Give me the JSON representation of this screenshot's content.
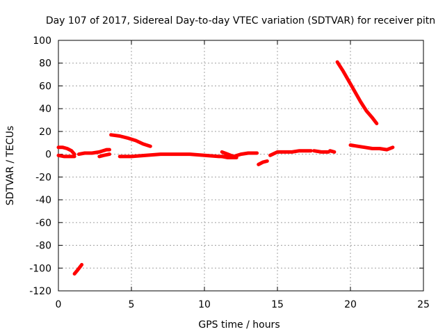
{
  "chart_data": {
    "type": "line",
    "title": "Day 107 of 2017, Sidereal Day-to-day VTEC variation (SDTVAR) for receiver pitn",
    "xlabel": "GPS time / hours",
    "ylabel": "SDTVAR / TECUs",
    "xlim": [
      0,
      25
    ],
    "ylim": [
      -120,
      100
    ],
    "xticks": [
      0,
      5,
      10,
      15,
      20,
      25
    ],
    "yticks": [
      -120,
      -100,
      -80,
      -60,
      -40,
      -20,
      0,
      20,
      40,
      60,
      80,
      100
    ],
    "grid": true,
    "legend": "none",
    "series_color": "#ff0000",
    "segments": [
      {
        "x": [
          0.0,
          0.3,
          0.6,
          0.9,
          1.1
        ],
        "y": [
          6,
          6,
          5,
          3,
          0
        ]
      },
      {
        "x": [
          0.0,
          0.4,
          0.8,
          1.1
        ],
        "y": [
          -1,
          -2,
          -2,
          -2
        ]
      },
      {
        "x": [
          1.1,
          1.3,
          1.6
        ],
        "y": [
          -105,
          -102,
          -97
        ]
      },
      {
        "x": [
          1.4,
          1.8,
          2.3,
          2.8,
          3.3,
          3.5
        ],
        "y": [
          0,
          1,
          1,
          2,
          4,
          4
        ]
      },
      {
        "x": [
          2.8,
          3.1,
          3.5
        ],
        "y": [
          -2,
          -1,
          0
        ]
      },
      {
        "x": [
          3.6,
          4.2,
          4.8,
          5.3,
          5.8,
          6.3
        ],
        "y": [
          17,
          16,
          14,
          12,
          9,
          7
        ]
      },
      {
        "x": [
          4.2,
          5.0,
          6.0,
          7.0,
          8.0,
          9.0,
          10.0,
          11.0,
          11.8
        ],
        "y": [
          -2,
          -2,
          -1,
          0,
          0,
          0,
          -1,
          -2,
          -2
        ]
      },
      {
        "x": [
          11.2,
          11.6,
          12.0,
          12.5,
          13.0,
          13.6
        ],
        "y": [
          2,
          0,
          -2,
          0,
          1,
          1
        ]
      },
      {
        "x": [
          11.2,
          11.6,
          12.2
        ],
        "y": [
          -2,
          -3,
          -3
        ]
      },
      {
        "x": [
          13.7,
          14.0,
          14.3
        ],
        "y": [
          -9,
          -7,
          -6
        ]
      },
      {
        "x": [
          14.5,
          15.0,
          15.5,
          16.0,
          16.5,
          17.0,
          17.3
        ],
        "y": [
          -1,
          2,
          2,
          2,
          3,
          3,
          3
        ]
      },
      {
        "x": [
          17.5,
          18.0,
          18.5
        ],
        "y": [
          3,
          2,
          2
        ]
      },
      {
        "x": [
          18.6,
          18.9
        ],
        "y": [
          3,
          2
        ]
      },
      {
        "x": [
          19.1,
          19.5,
          19.9,
          20.3,
          20.7,
          21.1,
          21.5,
          21.8
        ],
        "y": [
          81,
          73,
          64,
          55,
          46,
          38,
          32,
          27
        ]
      },
      {
        "x": [
          20.0,
          20.5,
          21.0,
          21.5,
          22.0,
          22.5,
          22.9
        ],
        "y": [
          8,
          7,
          6,
          5,
          5,
          4,
          6
        ]
      }
    ]
  }
}
